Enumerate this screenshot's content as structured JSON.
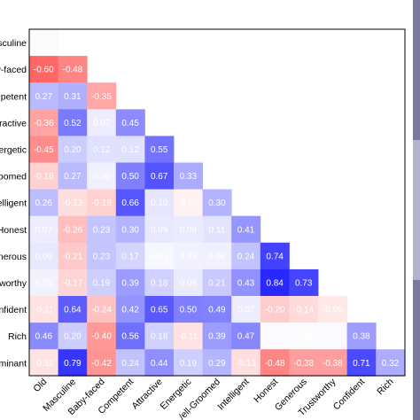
{
  "chart_data": {
    "type": "heatmap",
    "matrix_shape": "lower-triangular",
    "row_labels": [
      "Masculine",
      "Baby-faced",
      "Competent",
      "Attractive",
      "Energetic",
      "Well-Groomed",
      "Intelligent",
      "Honest",
      "Generous",
      "Trustworthy",
      "Confident",
      "Rich",
      "Dominant"
    ],
    "row_labels_visible": [
      "asculine",
      "y-faced",
      "petent",
      "ractive",
      "ergetic",
      "roomed",
      "itelligent",
      "Honest",
      "enerous",
      "worthy",
      "nfident",
      "Rich",
      "minant"
    ],
    "col_labels": [
      "Old",
      "Masculine",
      "Baby-faced",
      "Competent",
      "Attractive",
      "Energetic",
      "Well-Groomed",
      "Intelligent",
      "Honest",
      "Generous",
      "Trustworthy",
      "Confident",
      "Rich"
    ],
    "col_labels_visible": [
      "Old",
      "Masculine",
      "Baby-faced",
      "Competent",
      "Attractive",
      "Energetic",
      "/ell-Groomed",
      "Intelligent",
      "Honest",
      "Generous",
      "Trustworthy",
      "Confident",
      "Rich"
    ],
    "values": [
      [
        0.01
      ],
      [
        -0.6,
        -0.48
      ],
      [
        0.27,
        0.31,
        -0.35
      ],
      [
        -0.36,
        0.52,
        0.07,
        0.45
      ],
      [
        -0.45,
        0.2,
        0.12,
        0.12,
        0.55
      ],
      [
        -0.18,
        0.27,
        0.06,
        0.5,
        0.67,
        0.33
      ],
      [
        0.26,
        -0.13,
        -0.18,
        0.66,
        0.1,
        -0.05,
        0.3
      ],
      [
        0.07,
        -0.26,
        0.23,
        0.3,
        0.09,
        0.08,
        0.11,
        0.41
      ],
      [
        0.09,
        -0.21,
        0.23,
        0.17,
        0.03,
        0.05,
        0.06,
        0.24,
        0.74
      ],
      [
        0.05,
        -0.17,
        0.19,
        0.39,
        0.18,
        0.08,
        0.21,
        0.43,
        0.84,
        0.73
      ],
      [
        -0.11,
        0.64,
        -0.24,
        0.42,
        0.65,
        0.5,
        0.49,
        0.07,
        -0.2,
        -0.14,
        -0.09
      ],
      [
        0.46,
        0.2,
        -0.4,
        0.56,
        0.18,
        -0.11,
        0.39,
        0.47,
        0.02,
        0.01,
        0.02,
        0.38
      ],
      [
        -0.11,
        0.79,
        -0.42,
        0.24,
        0.44,
        0.19,
        0.29,
        -0.13,
        -0.48,
        -0.38,
        -0.38,
        0.71,
        0.32
      ]
    ],
    "value_range": [
      -1,
      1
    ],
    "colormap": {
      "negative": "#ff0000",
      "zero": "#ffffff",
      "positive": "#0000ff"
    },
    "colorbar_colors": [
      "#7a7a9f",
      "#b3b3cc",
      "#7a7a9f"
    ],
    "grid": false
  }
}
